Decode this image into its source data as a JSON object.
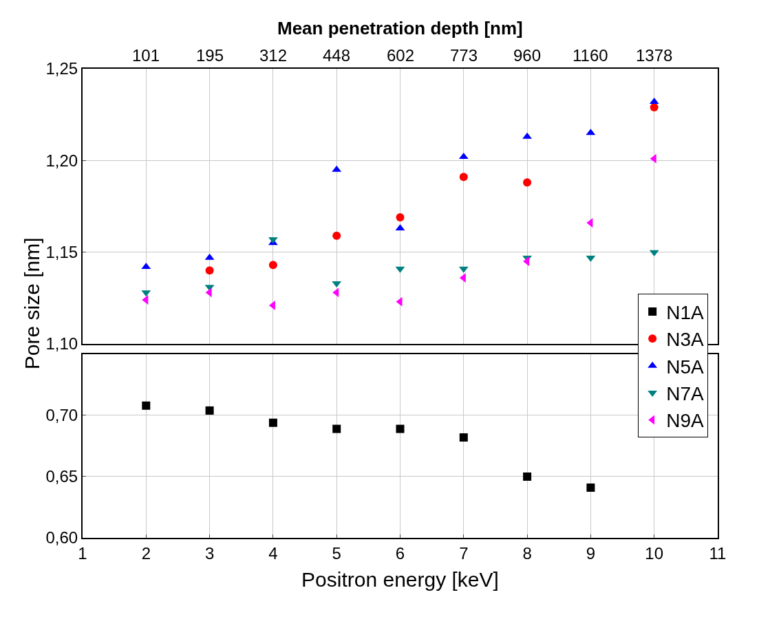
{
  "chart_data": [
    {
      "type": "scatter",
      "x2label": "Mean penetration depth [nm]",
      "ylabel": "Pore size [nm]",
      "xlim": [
        1,
        11
      ],
      "xticks": [
        1,
        2,
        3,
        4,
        5,
        6,
        7,
        8,
        9,
        10,
        11
      ],
      "annotations": [
        "101",
        "195",
        "312",
        "448",
        "602",
        "773",
        "960",
        "1160",
        "1378"
      ],
      "ylim": [
        1.1,
        1.25
      ],
      "yticks": [
        {
          "value": 1.1,
          "label": "1,10"
        },
        {
          "value": 1.15,
          "label": "1,15"
        },
        {
          "value": 1.2,
          "label": "1,20"
        },
        {
          "value": 1.25,
          "label": "1,25"
        }
      ],
      "tick_labels": "y",
      "grid": true,
      "legend": "right",
      "x": [
        2,
        3,
        4,
        5,
        6,
        7,
        8,
        9,
        10
      ],
      "series": [
        {
          "name": "N3A",
          "color": "#ff0000",
          "marker": "circle",
          "values": [
            null,
            1.14,
            1.143,
            1.159,
            1.169,
            1.191,
            1.188,
            null,
            1.229
          ]
        },
        {
          "name": "N5A",
          "color": "#0000ff",
          "marker": "triangle",
          "values": [
            1.142,
            1.147,
            1.155,
            1.195,
            1.163,
            1.202,
            1.213,
            1.215,
            1.232
          ]
        },
        {
          "name": "N7A",
          "color": "#008080",
          "marker": "triangle-down",
          "values": [
            1.128,
            1.131,
            1.157,
            1.133,
            1.141,
            1.141,
            1.147,
            1.147,
            1.15
          ]
        },
        {
          "name": "N9A",
          "color": "#ff00ff",
          "marker": "triangle-left",
          "values": [
            1.124,
            1.128,
            1.121,
            1.128,
            1.123,
            1.136,
            1.145,
            1.166,
            1.201
          ]
        }
      ]
    },
    {
      "type": "scatter",
      "xlabel": "Positron energy [keV]",
      "xlim": [
        1,
        11
      ],
      "xticks": [
        1,
        2,
        3,
        4,
        5,
        6,
        7,
        8,
        9,
        10,
        11
      ],
      "ylim": [
        0.6,
        0.75
      ],
      "yticks": [
        {
          "value": 0.6,
          "label": "0,60"
        },
        {
          "value": 0.65,
          "label": "0,65"
        },
        {
          "value": 0.7,
          "label": "0,70"
        }
      ],
      "grid": true,
      "legend": "right",
      "x": [
        2,
        3,
        4,
        5,
        6,
        7,
        8,
        9
      ],
      "series": [
        {
          "name": "N1A",
          "color": "#000000",
          "marker": "square",
          "values": [
            0.708,
            0.704,
            0.694,
            0.689,
            0.689,
            0.682,
            0.65,
            0.641
          ]
        }
      ]
    }
  ]
}
